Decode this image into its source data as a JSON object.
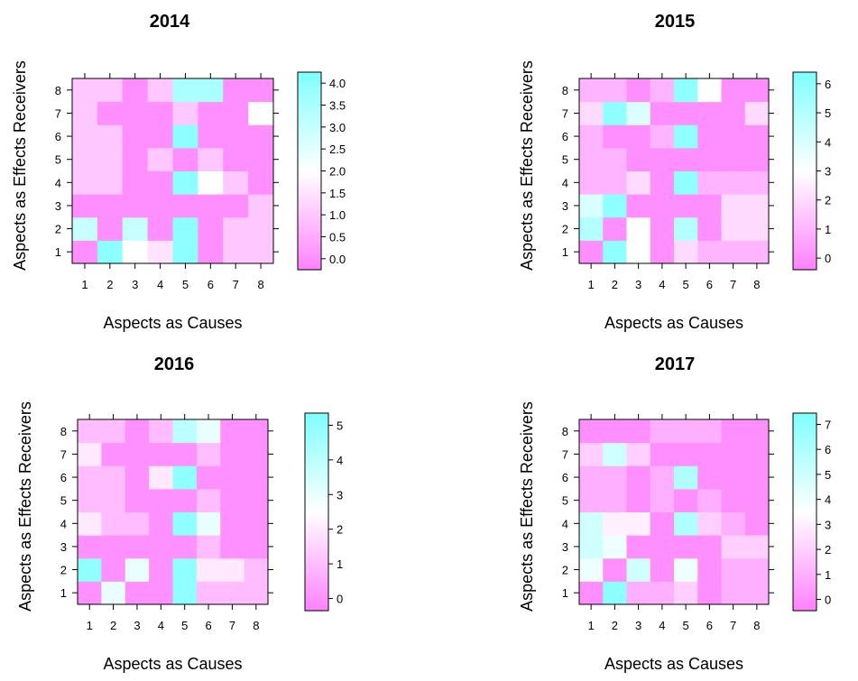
{
  "chart_data": [
    {
      "type": "heatmap",
      "title": "2014",
      "xlabel": "Aspects as Causes",
      "ylabel": "Aspects as Effects Receivers",
      "x": [
        1,
        2,
        3,
        4,
        5,
        6,
        7,
        8
      ],
      "y": [
        1,
        2,
        3,
        4,
        5,
        6,
        7,
        8
      ],
      "colorbar_ticks": [
        "0.0",
        "0.5",
        "1.0",
        "1.5",
        "2.0",
        "2.5",
        "3.0",
        "3.5",
        "4.0"
      ],
      "colorbar_range": [
        -0.25,
        4.25
      ],
      "values": [
        [
          0,
          4,
          2,
          1.5,
          4,
          0,
          1,
          1
        ],
        [
          3,
          0,
          3,
          0,
          4,
          0,
          1,
          1
        ],
        [
          0,
          0,
          0,
          0,
          0,
          0,
          0,
          1
        ],
        [
          1,
          1,
          0,
          0,
          4,
          2,
          1,
          0
        ],
        [
          1,
          1,
          0,
          1,
          0,
          1,
          0,
          0
        ],
        [
          1,
          1,
          0,
          0,
          4,
          0,
          0,
          0
        ],
        [
          1,
          0,
          0,
          0,
          1,
          0,
          0,
          2
        ],
        [
          1,
          1,
          0,
          1,
          3.5,
          3.5,
          0,
          0
        ]
      ]
    },
    {
      "type": "heatmap",
      "title": "2015",
      "xlabel": "Aspects as Causes",
      "ylabel": "Aspects as Effects Receivers",
      "x": [
        1,
        2,
        3,
        4,
        5,
        6,
        7,
        8
      ],
      "y": [
        1,
        2,
        3,
        4,
        5,
        6,
        7,
        8
      ],
      "colorbar_ticks": [
        "0",
        "1",
        "2",
        "3",
        "4",
        "5",
        "6"
      ],
      "colorbar_range": [
        -0.4,
        6.4
      ],
      "values": [
        [
          0,
          6,
          3,
          0,
          2,
          1,
          1,
          1
        ],
        [
          5,
          0,
          3,
          0,
          5,
          0,
          2,
          2
        ],
        [
          4,
          6,
          0,
          0,
          0,
          0,
          2,
          2
        ],
        [
          1,
          1,
          2,
          0,
          6,
          1,
          1,
          1
        ],
        [
          1,
          1,
          0,
          0,
          0,
          0,
          0,
          0
        ],
        [
          1,
          0,
          0,
          1,
          6,
          0,
          0,
          0
        ],
        [
          2,
          6,
          4,
          0,
          0,
          0,
          0,
          2
        ],
        [
          1,
          1,
          0,
          1,
          6,
          3,
          0,
          0
        ]
      ]
    },
    {
      "type": "heatmap",
      "title": "2016",
      "xlabel": "Aspects as Causes",
      "ylabel": "Aspects as Effects Receivers",
      "x": [
        1,
        2,
        3,
        4,
        5,
        6,
        7,
        8
      ],
      "y": [
        1,
        2,
        3,
        4,
        5,
        6,
        7,
        8
      ],
      "colorbar_ticks": [
        "0",
        "1",
        "2",
        "3",
        "4",
        "5"
      ],
      "colorbar_range": [
        -0.35,
        5.35
      ],
      "values": [
        [
          0,
          3,
          0,
          0,
          5,
          1,
          1,
          1
        ],
        [
          5,
          0,
          3,
          0,
          5,
          2,
          2,
          1
        ],
        [
          0,
          0,
          0,
          0,
          0,
          1,
          0,
          0
        ],
        [
          2,
          1,
          1,
          0,
          5,
          3,
          0,
          0
        ],
        [
          1,
          1,
          0,
          0,
          0,
          1,
          0,
          0
        ],
        [
          1,
          1,
          0,
          2,
          5,
          0,
          0,
          0
        ],
        [
          2,
          0,
          0,
          0,
          0,
          1,
          0,
          0
        ],
        [
          1,
          1,
          0,
          1,
          4,
          3,
          0,
          0
        ]
      ]
    },
    {
      "type": "heatmap",
      "title": "2017",
      "xlabel": "Aspects as Causes",
      "ylabel": "Aspects as Effects Receivers",
      "x": [
        1,
        2,
        3,
        4,
        5,
        6,
        7,
        8
      ],
      "y": [
        1,
        2,
        3,
        4,
        5,
        6,
        7,
        8
      ],
      "colorbar_ticks": [
        "0",
        "1",
        "2",
        "3",
        "4",
        "5",
        "6",
        "7"
      ],
      "colorbar_range": [
        -0.45,
        7.45
      ],
      "values": [
        [
          0,
          7,
          1,
          1,
          2,
          0,
          1,
          1
        ],
        [
          4,
          0,
          5,
          0,
          4,
          0,
          1,
          1
        ],
        [
          5,
          4,
          0,
          0,
          0,
          0,
          2,
          2
        ],
        [
          5,
          3,
          3,
          0,
          6,
          2,
          1,
          0
        ],
        [
          1,
          1,
          0,
          1,
          0,
          1,
          0,
          0
        ],
        [
          1,
          1,
          0,
          1,
          6,
          0,
          0,
          0
        ],
        [
          2,
          5,
          2,
          0,
          0,
          0,
          0,
          0
        ],
        [
          0,
          0,
          0,
          1,
          1,
          1,
          0,
          0
        ]
      ]
    }
  ]
}
